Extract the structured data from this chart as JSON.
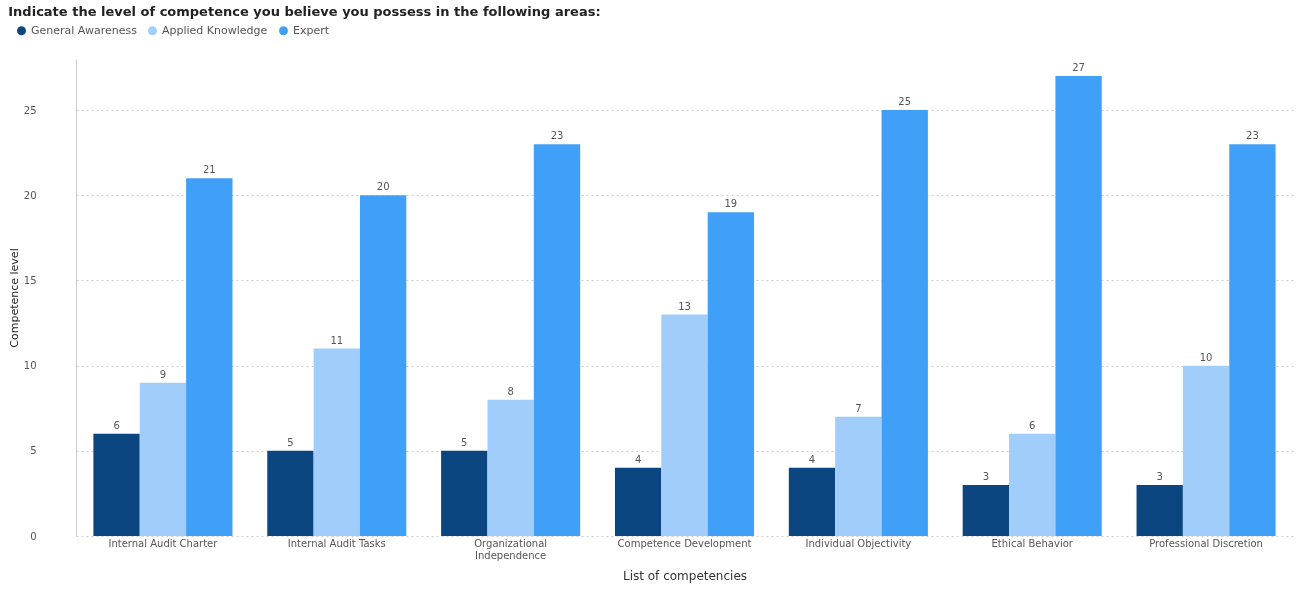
{
  "chart_data": {
    "type": "bar",
    "title": "Indicate the level of competence you believe you possess in the following areas:",
    "xlabel": "List of competencies",
    "ylabel": "Competence level",
    "categories": [
      "Internal Audit Charter",
      "Internal Audit Tasks",
      "Organizational Independence",
      "Competence Development",
      "Individual Objectivity",
      "Ethical Behavior",
      "Professional Discretion"
    ],
    "series": [
      {
        "name": "General Awareness",
        "color": "#0b4680",
        "values": [
          6,
          5,
          5,
          4,
          4,
          3,
          3
        ]
      },
      {
        "name": "Applied Knowledge",
        "color": "#a0cdfa",
        "values": [
          9,
          11,
          8,
          13,
          7,
          6,
          10
        ]
      },
      {
        "name": "Expert",
        "color": "#40a0f8",
        "values": [
          21,
          20,
          23,
          19,
          25,
          27,
          23
        ]
      }
    ],
    "ylim": [
      0,
      28
    ],
    "yticks": [
      0,
      5,
      10,
      15,
      20,
      25
    ],
    "grid": "y",
    "legend": "top left",
    "data_labels": true
  }
}
